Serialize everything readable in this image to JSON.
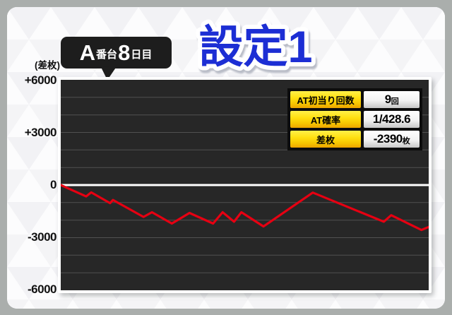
{
  "header": {
    "title": "設定1",
    "title_color": "#1f2ed4",
    "badge": {
      "part1": "A",
      "part2": "番台",
      "part3": "8",
      "part4": "日目"
    }
  },
  "axis": {
    "unit": "(差枚)",
    "ticks": [
      "+6000",
      "+3000",
      "0",
      "-3000",
      "-6000"
    ]
  },
  "stats": {
    "rows": [
      {
        "label": "AT初当り回数",
        "value": "9",
        "suffix": "回"
      },
      {
        "label": "AT確率",
        "value": "1/428.6",
        "suffix": ""
      },
      {
        "label": "差枚",
        "value": "-2390",
        "suffix": "枚"
      }
    ]
  },
  "chart_data": {
    "type": "line",
    "title": "設定1 A番台8日目 差枚推移",
    "ylabel": "差枚",
    "ylim": [
      -6000,
      6000
    ],
    "y_ticks": [
      6000,
      3000,
      0,
      -3000,
      -6000
    ],
    "gridline_step": 1000,
    "grid_on": true,
    "line_color": "#e60012",
    "zero_line_color": "#ffffff",
    "plot_bg": "#272727",
    "points": [
      {
        "x": 0.0,
        "y": 0
      },
      {
        "x": 0.069,
        "y": -650
      },
      {
        "x": 0.083,
        "y": -420
      },
      {
        "x": 0.134,
        "y": -1030
      },
      {
        "x": 0.142,
        "y": -850
      },
      {
        "x": 0.225,
        "y": -1815
      },
      {
        "x": 0.248,
        "y": -1550
      },
      {
        "x": 0.302,
        "y": -2195
      },
      {
        "x": 0.35,
        "y": -1590
      },
      {
        "x": 0.414,
        "y": -2195
      },
      {
        "x": 0.44,
        "y": -1550
      },
      {
        "x": 0.471,
        "y": -2090
      },
      {
        "x": 0.491,
        "y": -1550
      },
      {
        "x": 0.551,
        "y": -2360
      },
      {
        "x": 0.685,
        "y": -430
      },
      {
        "x": 0.878,
        "y": -2090
      },
      {
        "x": 0.898,
        "y": -1720
      },
      {
        "x": 0.98,
        "y": -2560
      },
      {
        "x": 1.0,
        "y": -2390
      }
    ]
  },
  "colors": {
    "frame_gray": "#aaaeac",
    "table_yellow": "#ffe011",
    "card_bg": "#fbfbfc"
  }
}
